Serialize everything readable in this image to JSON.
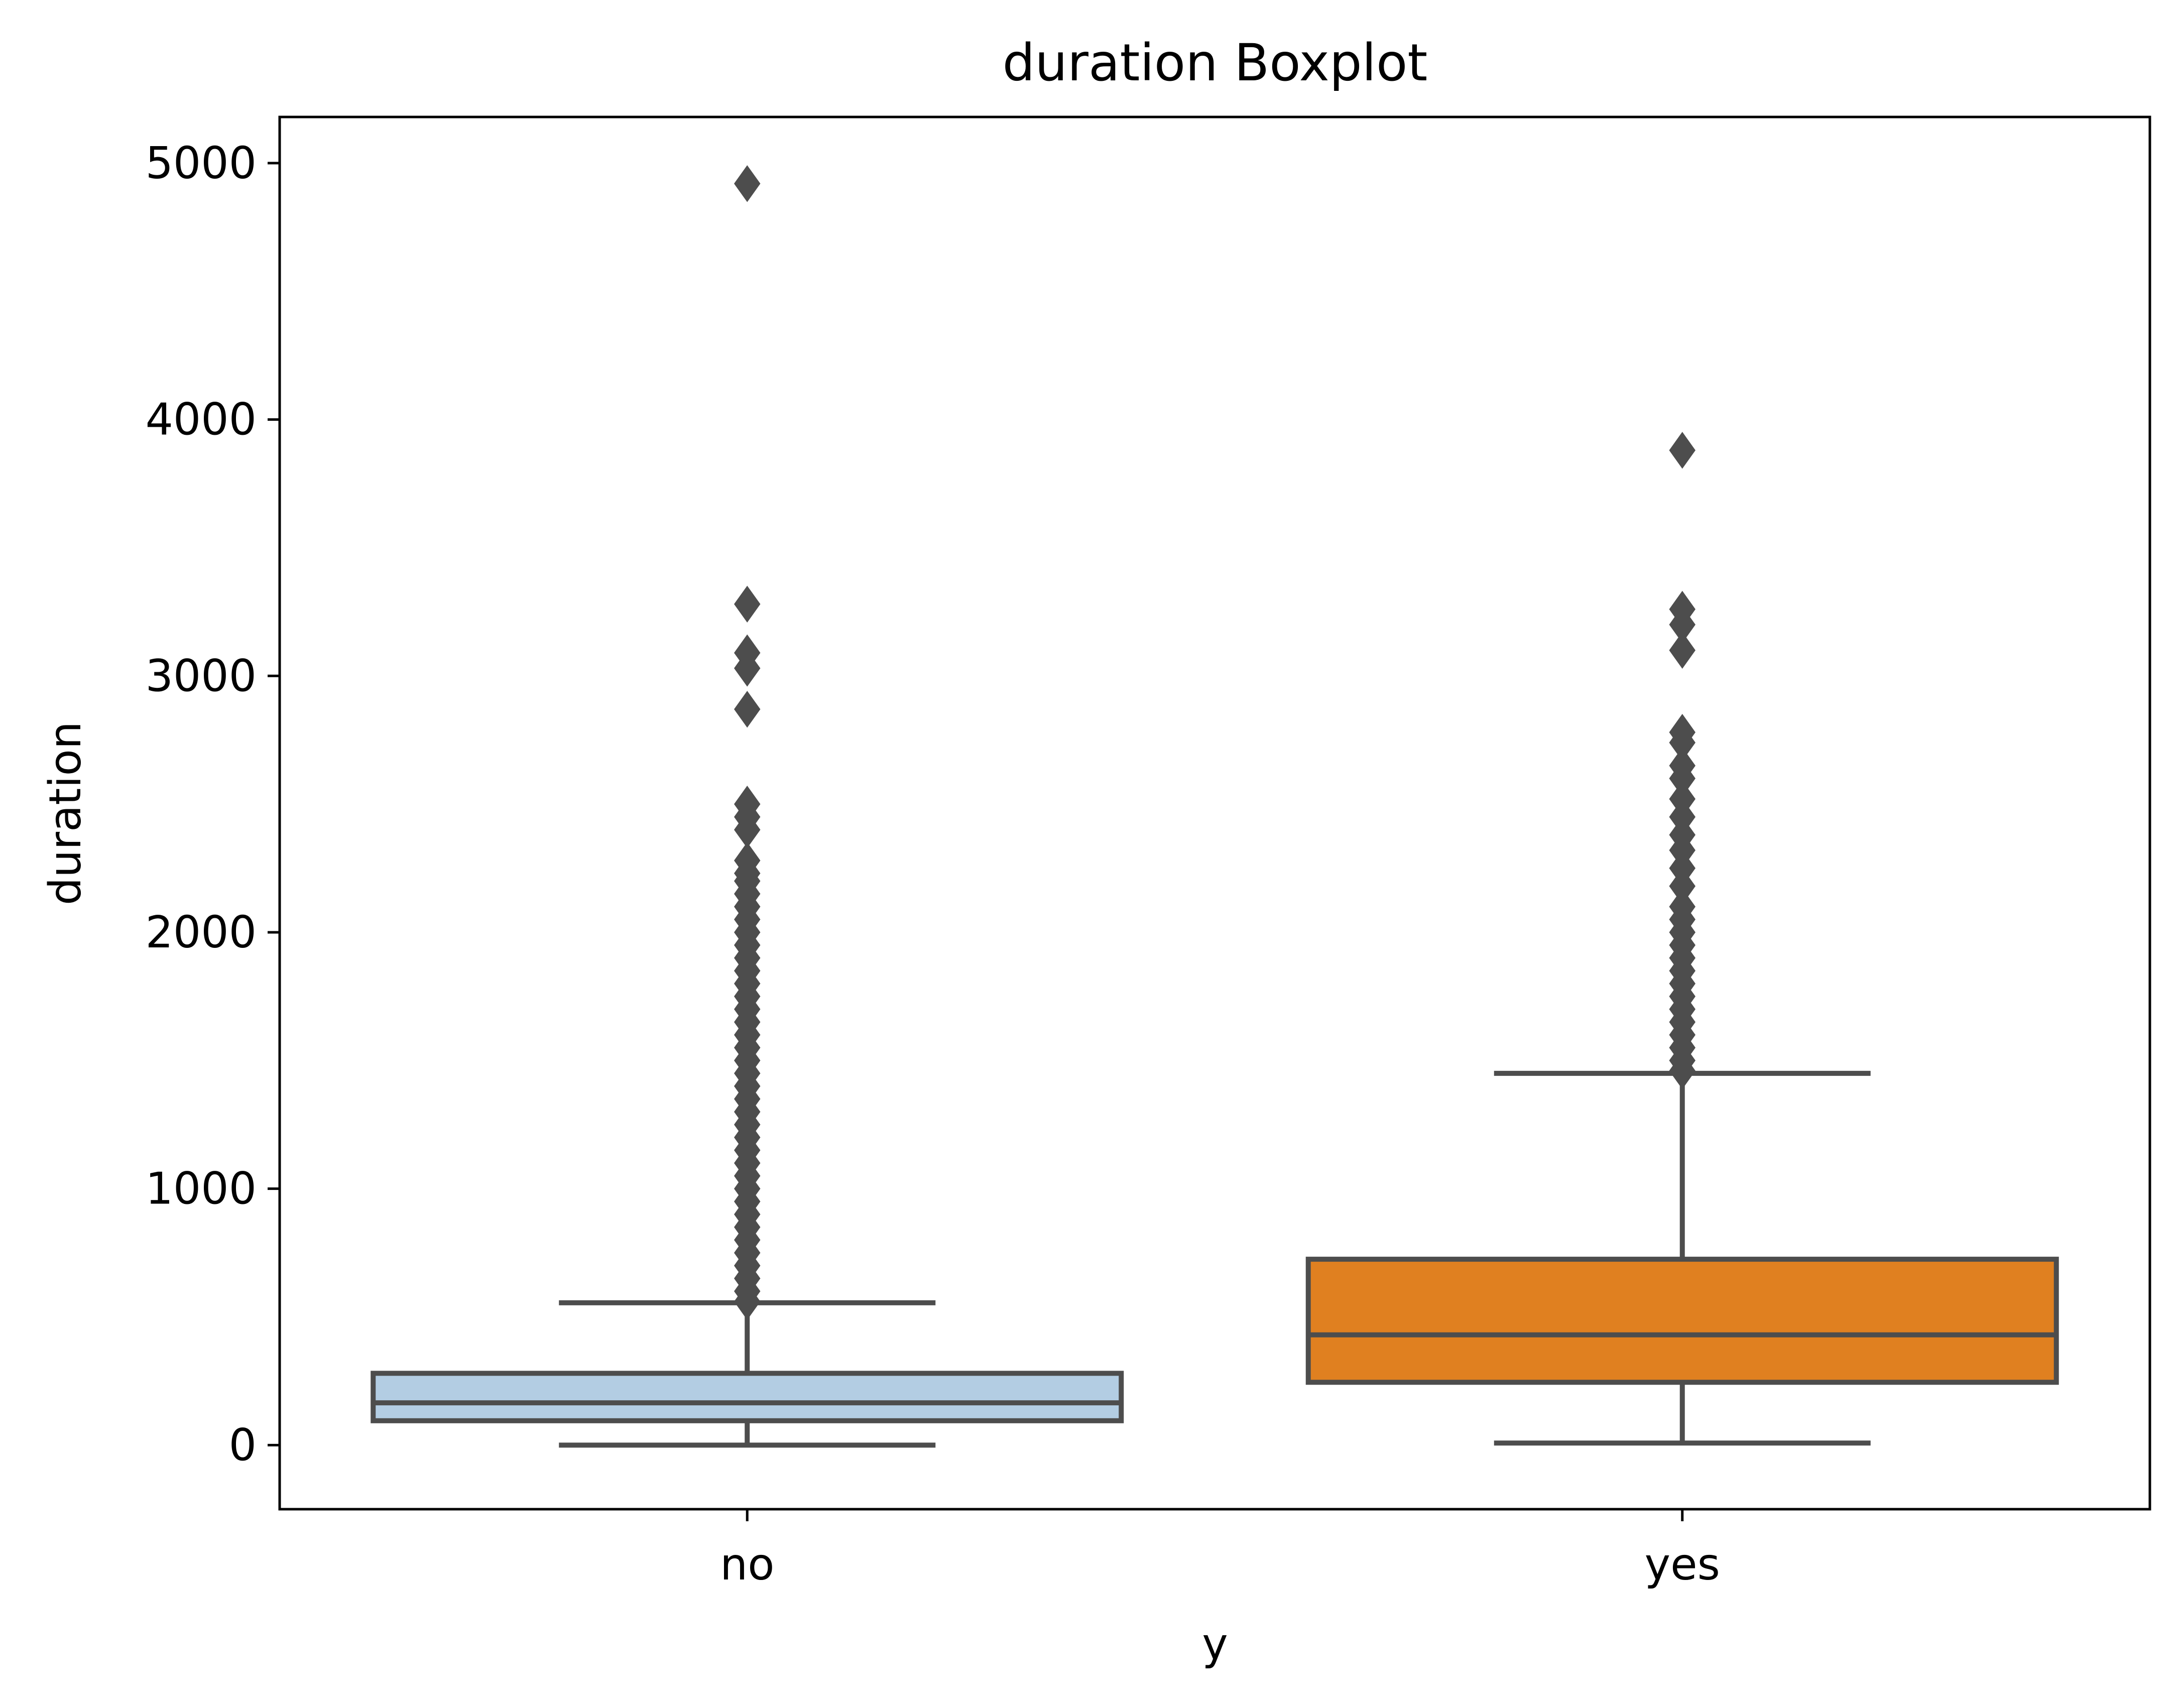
{
  "chart_data": {
    "type": "box",
    "title": "duration Boxplot",
    "xlabel": "y",
    "ylabel": "duration",
    "ylim": [
      -250,
      5180
    ],
    "yticks": [
      0,
      1000,
      2000,
      3000,
      4000,
      5000
    ],
    "grid": false,
    "categories": [
      "no",
      "yes"
    ],
    "boxes": [
      {
        "category": "no",
        "color": "#b3cde3",
        "whisker_low": 0,
        "q1": 95,
        "median": 165,
        "q3": 280,
        "whisker_high": 555,
        "outliers": [
          4920,
          3280,
          3090,
          3030,
          2870,
          2500,
          2450,
          2400,
          2280,
          2230,
          2200,
          2150,
          2100,
          2050,
          2000,
          1950,
          1900,
          1850,
          1800,
          1750,
          1700,
          1650,
          1600,
          1550,
          1500,
          1450,
          1400,
          1350,
          1300,
          1250,
          1200,
          1150,
          1100,
          1050,
          1000,
          950,
          900,
          850,
          800,
          750,
          700,
          650,
          600,
          560
        ]
      },
      {
        "category": "yes",
        "color": "#e08020",
        "whisker_low": 8,
        "q1": 245,
        "median": 430,
        "q3": 725,
        "whisker_high": 1450,
        "outliers": [
          3880,
          3260,
          3200,
          3100,
          2780,
          2740,
          2650,
          2600,
          2520,
          2450,
          2380,
          2320,
          2250,
          2180,
          2100,
          2050,
          2000,
          1950,
          1900,
          1850,
          1800,
          1750,
          1700,
          1650,
          1600,
          1550,
          1500,
          1460
        ]
      }
    ],
    "style": {
      "line_color": "#4d4d4d",
      "axes_color": "#000000"
    }
  }
}
